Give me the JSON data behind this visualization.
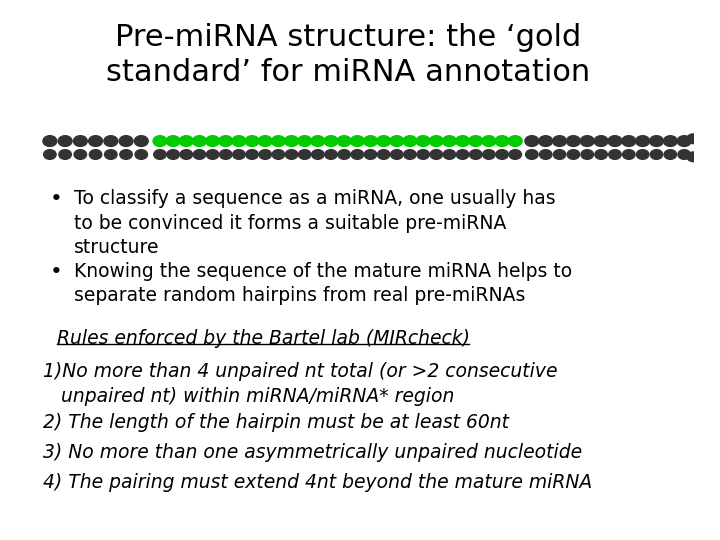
{
  "title_line1": "Pre-miRNA structure: the ‘gold",
  "title_line2": "standard’ for miRNA annotation",
  "title_fontsize": 22,
  "body_fontsize": 13.5,
  "italic_fontsize": 13.5,
  "bullet1_line1": "To classify a sequence as a miRNA, one usually has",
  "bullet1_line2": "to be convinced it forms a suitable pre-miRNA",
  "bullet1_line3": "structure",
  "bullet2_line1": "Knowing the sequence of the mature miRNA helps to",
  "bullet2_line2": "separate random hairpins from real pre-miRNAs",
  "rules_header": "Rules enforced by the Bartel lab (MIRcheck)",
  "rule1_line1": "1)No more than 4 unpaired nt total (or >2 consecutive",
  "rule1_line2": "   unpaired nt) within miRNA/miRNA* region",
  "rule2": "2) The length of the hairpin must be at least 60nt",
  "rule3": "3) No more than one asymmetrically unpaired nucleotide",
  "rule4": "4) The pairing must extend 4nt beyond the mature miRNA",
  "background_color": "#ffffff",
  "text_color": "#000000",
  "green_color": "#00cc00",
  "stem_color": "#333333"
}
